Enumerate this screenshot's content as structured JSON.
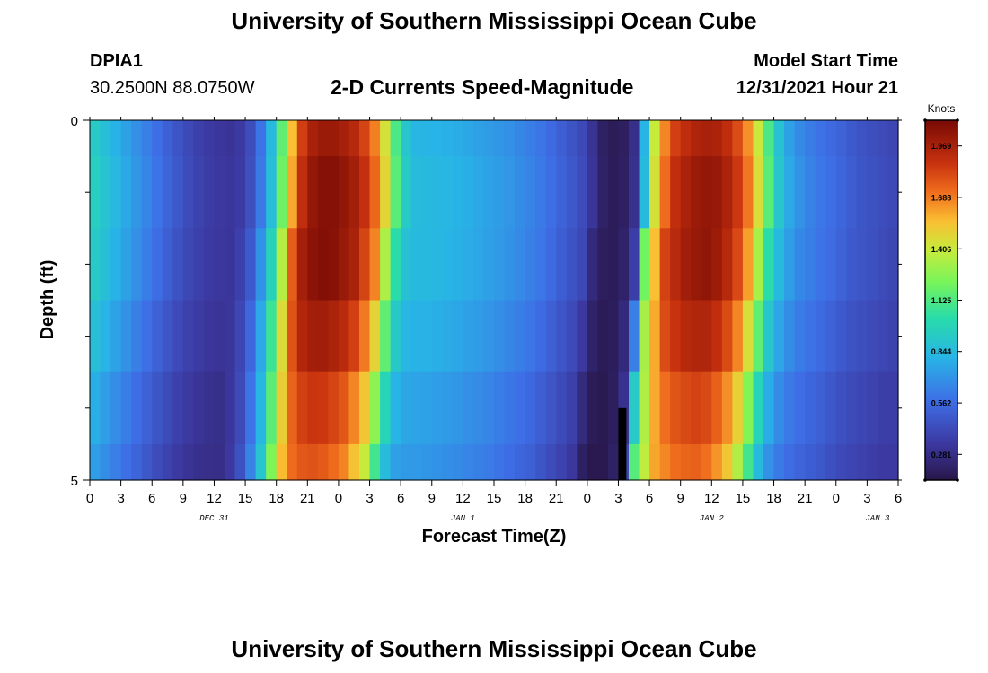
{
  "page": {
    "title": "University of Southern Mississippi Ocean Cube",
    "station_id": "DPIA1",
    "location": "30.2500N  88.0750W",
    "subtitle": "2-D Currents Speed-Magnitude",
    "start_label": "Model Start Time",
    "start_value": "12/31/2021 Hour 21",
    "footer_title": "University of Southern Mississippi Ocean Cube"
  },
  "chart_data": {
    "type": "heatmap",
    "title": "2-D Currents Speed-Magnitude",
    "xlabel": "Forecast Time(Z)",
    "ylabel": "Depth (ft)",
    "x_range_hours": [
      0,
      78
    ],
    "y_ticks": [
      "0",
      "5"
    ],
    "ylim": [
      0,
      5
    ],
    "x_tick_labels": [
      "0",
      "3",
      "6",
      "9",
      "12",
      "15",
      "18",
      "21",
      "0",
      "3",
      "6",
      "9",
      "12",
      "15",
      "18",
      "21",
      "0",
      "3",
      "6",
      "9",
      "12",
      "15",
      "18",
      "21",
      "0",
      "3",
      "6"
    ],
    "day_labels": [
      {
        "label": "DEC 31",
        "hour": 12
      },
      {
        "label": "JAN 1",
        "hour": 36
      },
      {
        "label": "JAN 2",
        "hour": 60
      },
      {
        "label": "JAN 3",
        "hour": 76
      }
    ],
    "colorbar": {
      "unit": "Knots",
      "min": 0.14,
      "max": 2.11,
      "tick_values": [
        0.281,
        0.562,
        0.844,
        1.125,
        1.406,
        1.688,
        1.969
      ],
      "tick_labels": [
        "0.281",
        "0.562",
        "0.844",
        "1.125",
        "1.406",
        "1.688",
        "1.969"
      ]
    },
    "depth_rows": 5,
    "depth_factors": [
      0.97,
      1.0,
      1.0,
      0.96,
      0.9,
      0.86
    ],
    "surface_speed_profile_hours": [
      0,
      2,
      4,
      6,
      8,
      10,
      12,
      14,
      15,
      16,
      17,
      18,
      19,
      20,
      21,
      22,
      23,
      24,
      26,
      28,
      29,
      30,
      31,
      32,
      33,
      36,
      40,
      44,
      46,
      48,
      49,
      50,
      51,
      52,
      53,
      54,
      56,
      58,
      60,
      61,
      62,
      63,
      64,
      65,
      66,
      67,
      68,
      69,
      70,
      72,
      74,
      76,
      78
    ],
    "surface_speed_profile_knots": [
      0.98,
      0.86,
      0.74,
      0.62,
      0.5,
      0.4,
      0.34,
      0.32,
      0.38,
      0.5,
      0.72,
      1.0,
      1.4,
      1.8,
      2.0,
      2.06,
      2.08,
      2.06,
      1.96,
      1.66,
      1.3,
      1.0,
      0.86,
      0.84,
      0.84,
      0.8,
      0.72,
      0.6,
      0.5,
      0.4,
      0.24,
      0.18,
      0.18,
      0.22,
      0.38,
      1.3,
      1.86,
      2.0,
      2.04,
      2.0,
      1.92,
      1.8,
      1.6,
      1.3,
      1.0,
      0.82,
      0.72,
      0.66,
      0.62,
      0.56,
      0.48,
      0.44,
      0.4
    ],
    "bottom_anomaly": {
      "hour_start": 51,
      "hour_end": 51.6,
      "depth_start": 4.0,
      "depth_end": 5.0,
      "color": "#000000"
    }
  }
}
